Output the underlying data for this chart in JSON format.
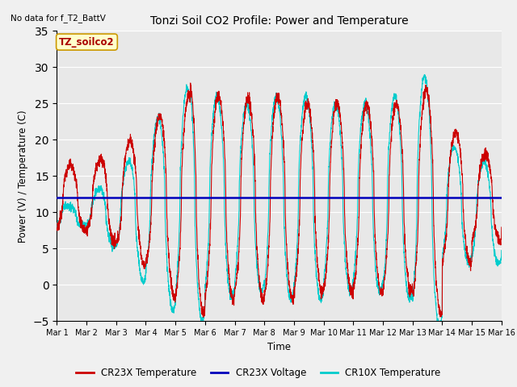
{
  "title": "Tonzi Soil CO2 Profile: Power and Temperature",
  "top_left_text": "No data for f_T2_BattV",
  "ylabel": "Power (V) / Temperature (C)",
  "xlabel": "Time",
  "xlim": [
    0,
    15
  ],
  "ylim": [
    -5,
    35
  ],
  "yticks": [
    -5,
    0,
    5,
    10,
    15,
    20,
    25,
    30,
    35
  ],
  "xtick_labels": [
    "Mar 1",
    "Mar 2",
    "Mar 3",
    "Mar 4",
    "Mar 5",
    "Mar 6",
    "Mar 7",
    "Mar 8",
    "Mar 9",
    "Mar 10",
    "Mar 11",
    "Mar 12",
    "Mar 13",
    "Mar 14",
    "Mar 15",
    "Mar 16"
  ],
  "voltage_line_y": 12.0,
  "voltage_color": "#0000bb",
  "cr23x_color": "#cc0000",
  "cr10x_color": "#00cccc",
  "legend_label_cr23x": "CR23X Temperature",
  "legend_label_voltage": "CR23X Voltage",
  "legend_label_cr10x": "CR10X Temperature",
  "inset_label": "TZ_soilco2",
  "fig_bg_color": "#f0f0f0",
  "plot_bg_color": "#e8e8e8",
  "grid_color": "#ffffff",
  "figsize": [
    6.4,
    4.8
  ],
  "dpi": 100
}
